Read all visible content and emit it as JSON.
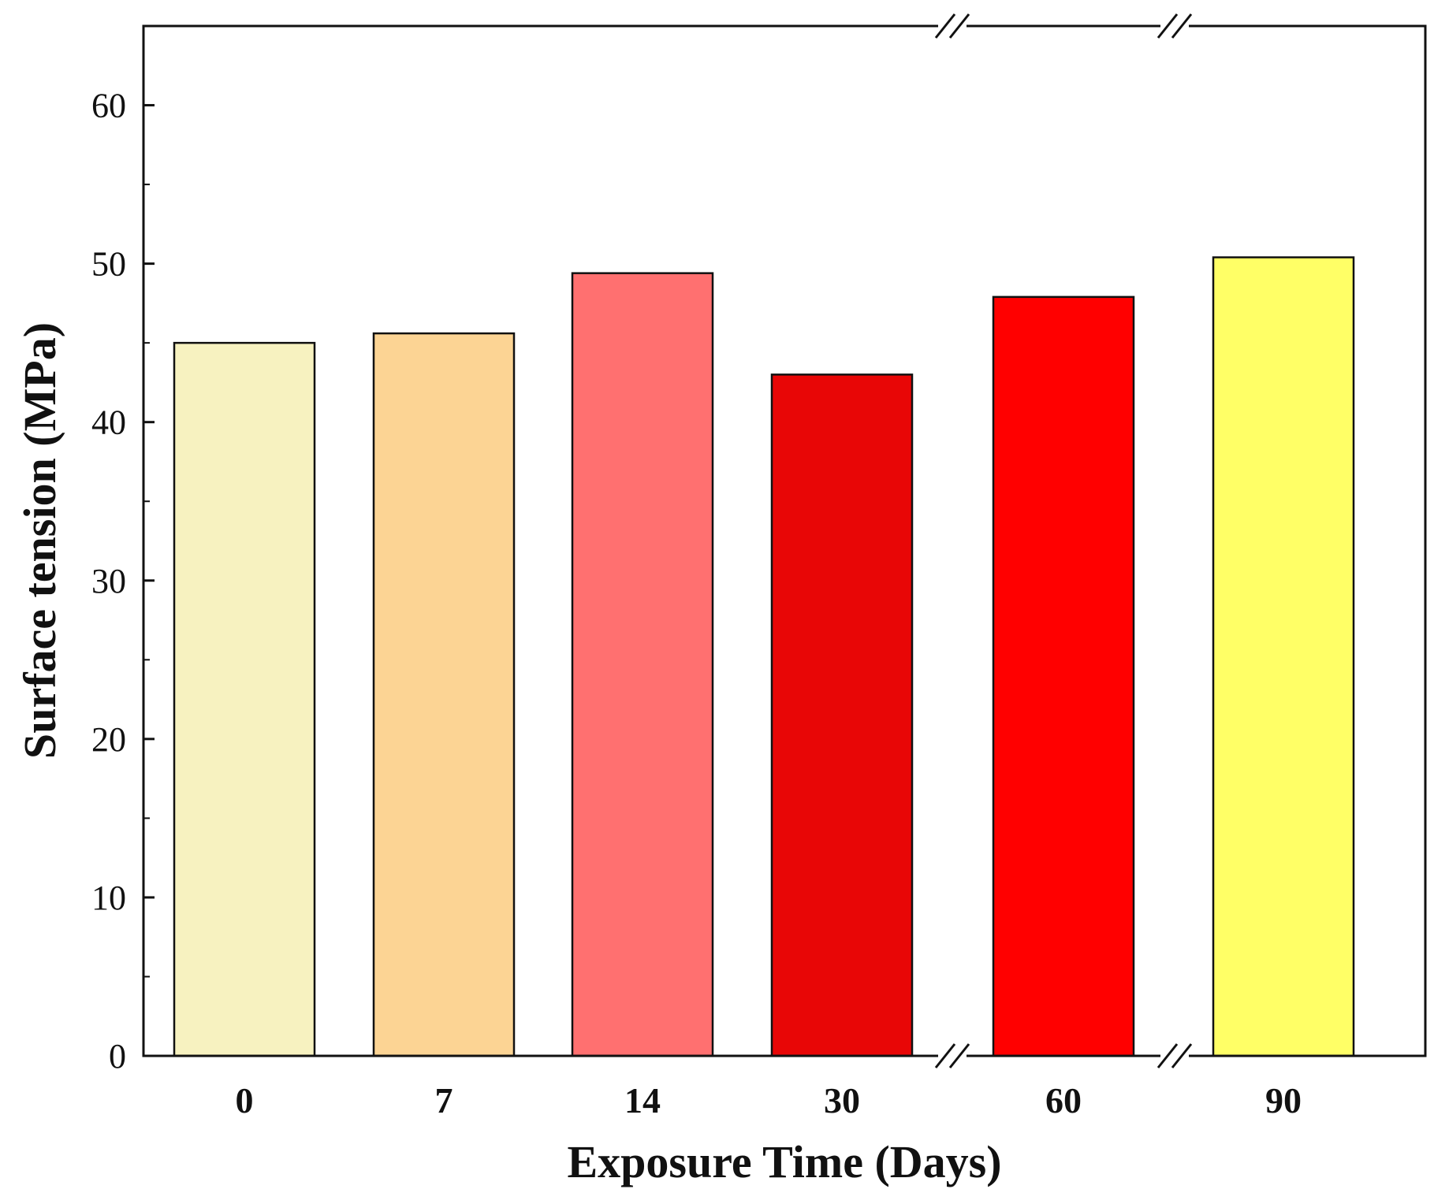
{
  "chart_data": {
    "type": "bar",
    "title": "",
    "xlabel": "Exposure Time (Days)",
    "ylabel": "Surface tension (MPa)",
    "categories": [
      "0",
      "7",
      "14",
      "30",
      "60",
      "90"
    ],
    "values": [
      45.0,
      45.6,
      49.4,
      43.0,
      47.9,
      50.4
    ],
    "colors": [
      "#f7f2c0",
      "#fcd494",
      "#ff7070",
      "#e80606",
      "#ff0000",
      "#ffff66"
    ],
    "ylim": [
      0,
      65
    ],
    "yticks": [
      0,
      10,
      20,
      30,
      40,
      50,
      60
    ],
    "axis_breaks_after_categories": [
      "30",
      "60"
    ],
    "grid": false,
    "legend": "none"
  }
}
